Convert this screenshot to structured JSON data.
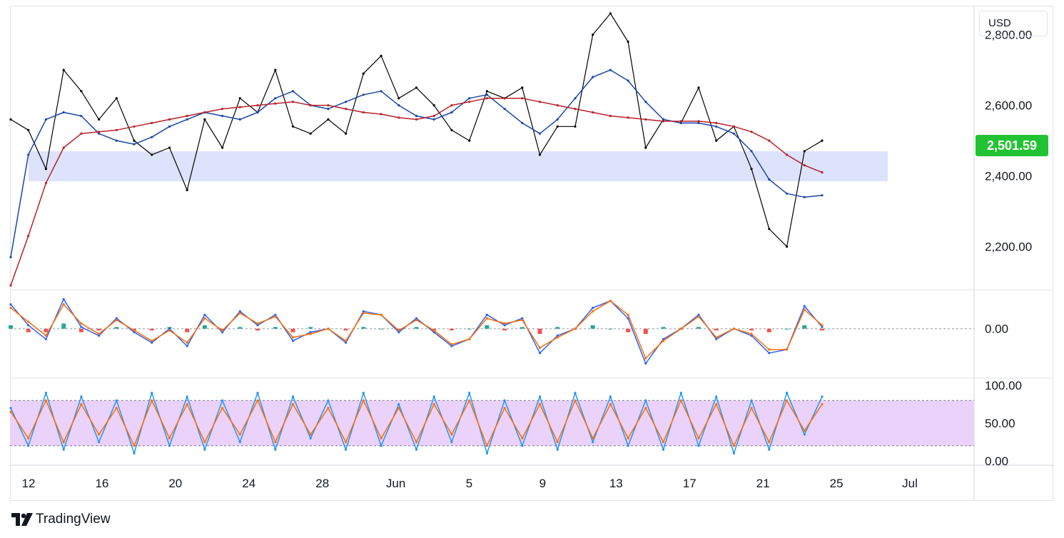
{
  "currency": "USD",
  "last_price_label": "2,501.59",
  "brand": "TradingView",
  "colors": {
    "price": "#000000",
    "ma_fast": "#1848a8",
    "ma_slow": "#b8222a",
    "zone": "#dde3fb",
    "macd": "#2962ff",
    "signal": "#ff6d00",
    "hist_up": "#26a69a",
    "hist_down": "#ef5350",
    "stoch_k": "#2196f3",
    "stoch_d": "#ff6d00",
    "stoch_band": "#ead2fb",
    "last_price_bg": "#22c332"
  },
  "chart_data": [
    {
      "type": "line",
      "panel": "price",
      "x_ticks": [
        "12",
        "16",
        "20",
        "24",
        "28",
        "Jun",
        "5",
        "9",
        "13",
        "17",
        "21",
        "25",
        "Jul"
      ],
      "y_ticks": [
        "2,800.00",
        "2,600.00",
        "2,400.00",
        "2,200.00"
      ],
      "ylim": [
        2090,
        2870
      ],
      "support_zone": [
        2385,
        2470
      ],
      "last_price": 2501.59,
      "x": [
        0,
        1,
        2,
        3,
        4,
        5,
        6,
        7,
        8,
        9,
        10,
        11,
        12,
        13,
        14,
        15,
        16,
        17,
        18,
        19,
        20,
        21,
        22,
        23,
        24,
        25,
        26,
        27,
        28,
        29,
        30,
        31,
        32,
        33,
        34,
        35,
        36,
        37,
        38,
        39,
        40,
        41,
        42,
        43,
        44,
        45,
        46
      ],
      "series": [
        {
          "role": "price",
          "values": [
            2560,
            2530,
            2420,
            2700,
            2640,
            2560,
            2620,
            2500,
            2460,
            2480,
            2360,
            2560,
            2480,
            2620,
            2580,
            2700,
            2540,
            2520,
            2560,
            2520,
            2690,
            2740,
            2620,
            2650,
            2600,
            2530,
            2500,
            2640,
            2620,
            2650,
            2460,
            2540,
            2540,
            2800,
            2860,
            2780,
            2480,
            2560,
            2550,
            2650,
            2500,
            2540,
            2420,
            2250,
            2200,
            2470,
            2500
          ]
        },
        {
          "role": "ma_fast",
          "values": [
            2170,
            2460,
            2560,
            2580,
            2570,
            2520,
            2500,
            2490,
            2510,
            2540,
            2560,
            2580,
            2570,
            2560,
            2580,
            2620,
            2640,
            2600,
            2590,
            2610,
            2630,
            2640,
            2600,
            2570,
            2560,
            2580,
            2620,
            2630,
            2590,
            2550,
            2520,
            2560,
            2620,
            2680,
            2700,
            2670,
            2610,
            2560,
            2550,
            2550,
            2540,
            2520,
            2470,
            2390,
            2350,
            2340,
            2345
          ]
        },
        {
          "role": "ma_slow",
          "values": [
            2090,
            2230,
            2380,
            2480,
            2520,
            2525,
            2530,
            2540,
            2550,
            2560,
            2570,
            2580,
            2590,
            2595,
            2600,
            2605,
            2610,
            2600,
            2600,
            2590,
            2580,
            2575,
            2565,
            2560,
            2570,
            2600,
            2610,
            2620,
            2620,
            2620,
            2610,
            2600,
            2590,
            2580,
            2570,
            2565,
            2560,
            2555,
            2555,
            2555,
            2550,
            2540,
            2525,
            2500,
            2460,
            2430,
            2410
          ]
        }
      ]
    },
    {
      "type": "line",
      "panel": "macd",
      "y_ticks": [
        "0.00"
      ],
      "ylim": [
        -130,
        100
      ],
      "x": [
        0,
        1,
        2,
        3,
        4,
        5,
        6,
        7,
        8,
        9,
        10,
        11,
        12,
        13,
        14,
        15,
        16,
        17,
        18,
        19,
        20,
        21,
        22,
        23,
        24,
        25,
        26,
        27,
        28,
        29,
        30,
        31,
        32,
        33,
        34,
        35,
        36,
        37,
        38,
        39,
        40,
        41,
        42,
        43,
        44,
        45,
        46
      ],
      "series": [
        {
          "role": "macd",
          "values": [
            70,
            10,
            -30,
            85,
            5,
            -20,
            30,
            -10,
            -40,
            0,
            -50,
            40,
            -10,
            50,
            10,
            40,
            -35,
            -10,
            0,
            -40,
            50,
            40,
            -10,
            30,
            -10,
            -50,
            -30,
            40,
            10,
            30,
            -70,
            -20,
            0,
            60,
            80,
            30,
            -100,
            -30,
            0,
            40,
            -30,
            0,
            -20,
            -70,
            -60,
            65,
            5
          ]
        },
        {
          "role": "signal",
          "values": [
            60,
            20,
            -20,
            70,
            15,
            -15,
            25,
            -5,
            -35,
            -5,
            -40,
            30,
            -5,
            45,
            15,
            35,
            -25,
            -15,
            0,
            -35,
            45,
            40,
            -5,
            25,
            -5,
            -45,
            -30,
            30,
            15,
            25,
            -55,
            -25,
            0,
            50,
            80,
            40,
            -85,
            -35,
            0,
            35,
            -25,
            0,
            -15,
            -60,
            -60,
            55,
            10
          ]
        },
        {
          "role": "histogram",
          "values": [
            10,
            -10,
            -10,
            15,
            -10,
            -5,
            5,
            -5,
            -5,
            5,
            -10,
            10,
            -5,
            5,
            -5,
            5,
            -10,
            5,
            0,
            -5,
            5,
            0,
            -5,
            5,
            -5,
            -5,
            0,
            10,
            -5,
            5,
            -15,
            5,
            0,
            10,
            0,
            -10,
            -15,
            5,
            0,
            5,
            -5,
            0,
            -5,
            -10,
            0,
            10,
            -5
          ]
        }
      ]
    },
    {
      "type": "line",
      "panel": "stochastic",
      "y_ticks": [
        "100.00",
        "50.00",
        "0.00"
      ],
      "ylim": [
        0,
        100
      ],
      "band": [
        20,
        80
      ],
      "x": [
        0,
        1,
        2,
        3,
        4,
        5,
        6,
        7,
        8,
        9,
        10,
        11,
        12,
        13,
        14,
        15,
        16,
        17,
        18,
        19,
        20,
        21,
        22,
        23,
        24,
        25,
        26,
        27,
        28,
        29,
        30,
        31,
        32,
        33,
        34,
        35,
        36,
        37,
        38,
        39,
        40,
        41,
        42,
        43,
        44,
        45,
        46
      ],
      "series": [
        {
          "role": "stoch_k",
          "values": [
            70,
            20,
            90,
            15,
            85,
            25,
            80,
            10,
            90,
            20,
            85,
            15,
            80,
            25,
            90,
            15,
            85,
            30,
            80,
            15,
            90,
            20,
            75,
            15,
            85,
            25,
            90,
            10,
            80,
            20,
            85,
            15,
            90,
            25,
            85,
            20,
            80,
            15,
            90,
            20,
            85,
            10,
            80,
            15,
            90,
            35,
            85
          ]
        },
        {
          "role": "stoch_d",
          "values": [
            65,
            30,
            80,
            25,
            75,
            35,
            70,
            20,
            80,
            30,
            75,
            25,
            70,
            35,
            80,
            25,
            75,
            35,
            70,
            25,
            80,
            30,
            70,
            25,
            75,
            35,
            80,
            20,
            70,
            30,
            75,
            25,
            80,
            30,
            75,
            30,
            70,
            25,
            80,
            30,
            75,
            20,
            70,
            25,
            80,
            40,
            75
          ]
        }
      ]
    }
  ]
}
